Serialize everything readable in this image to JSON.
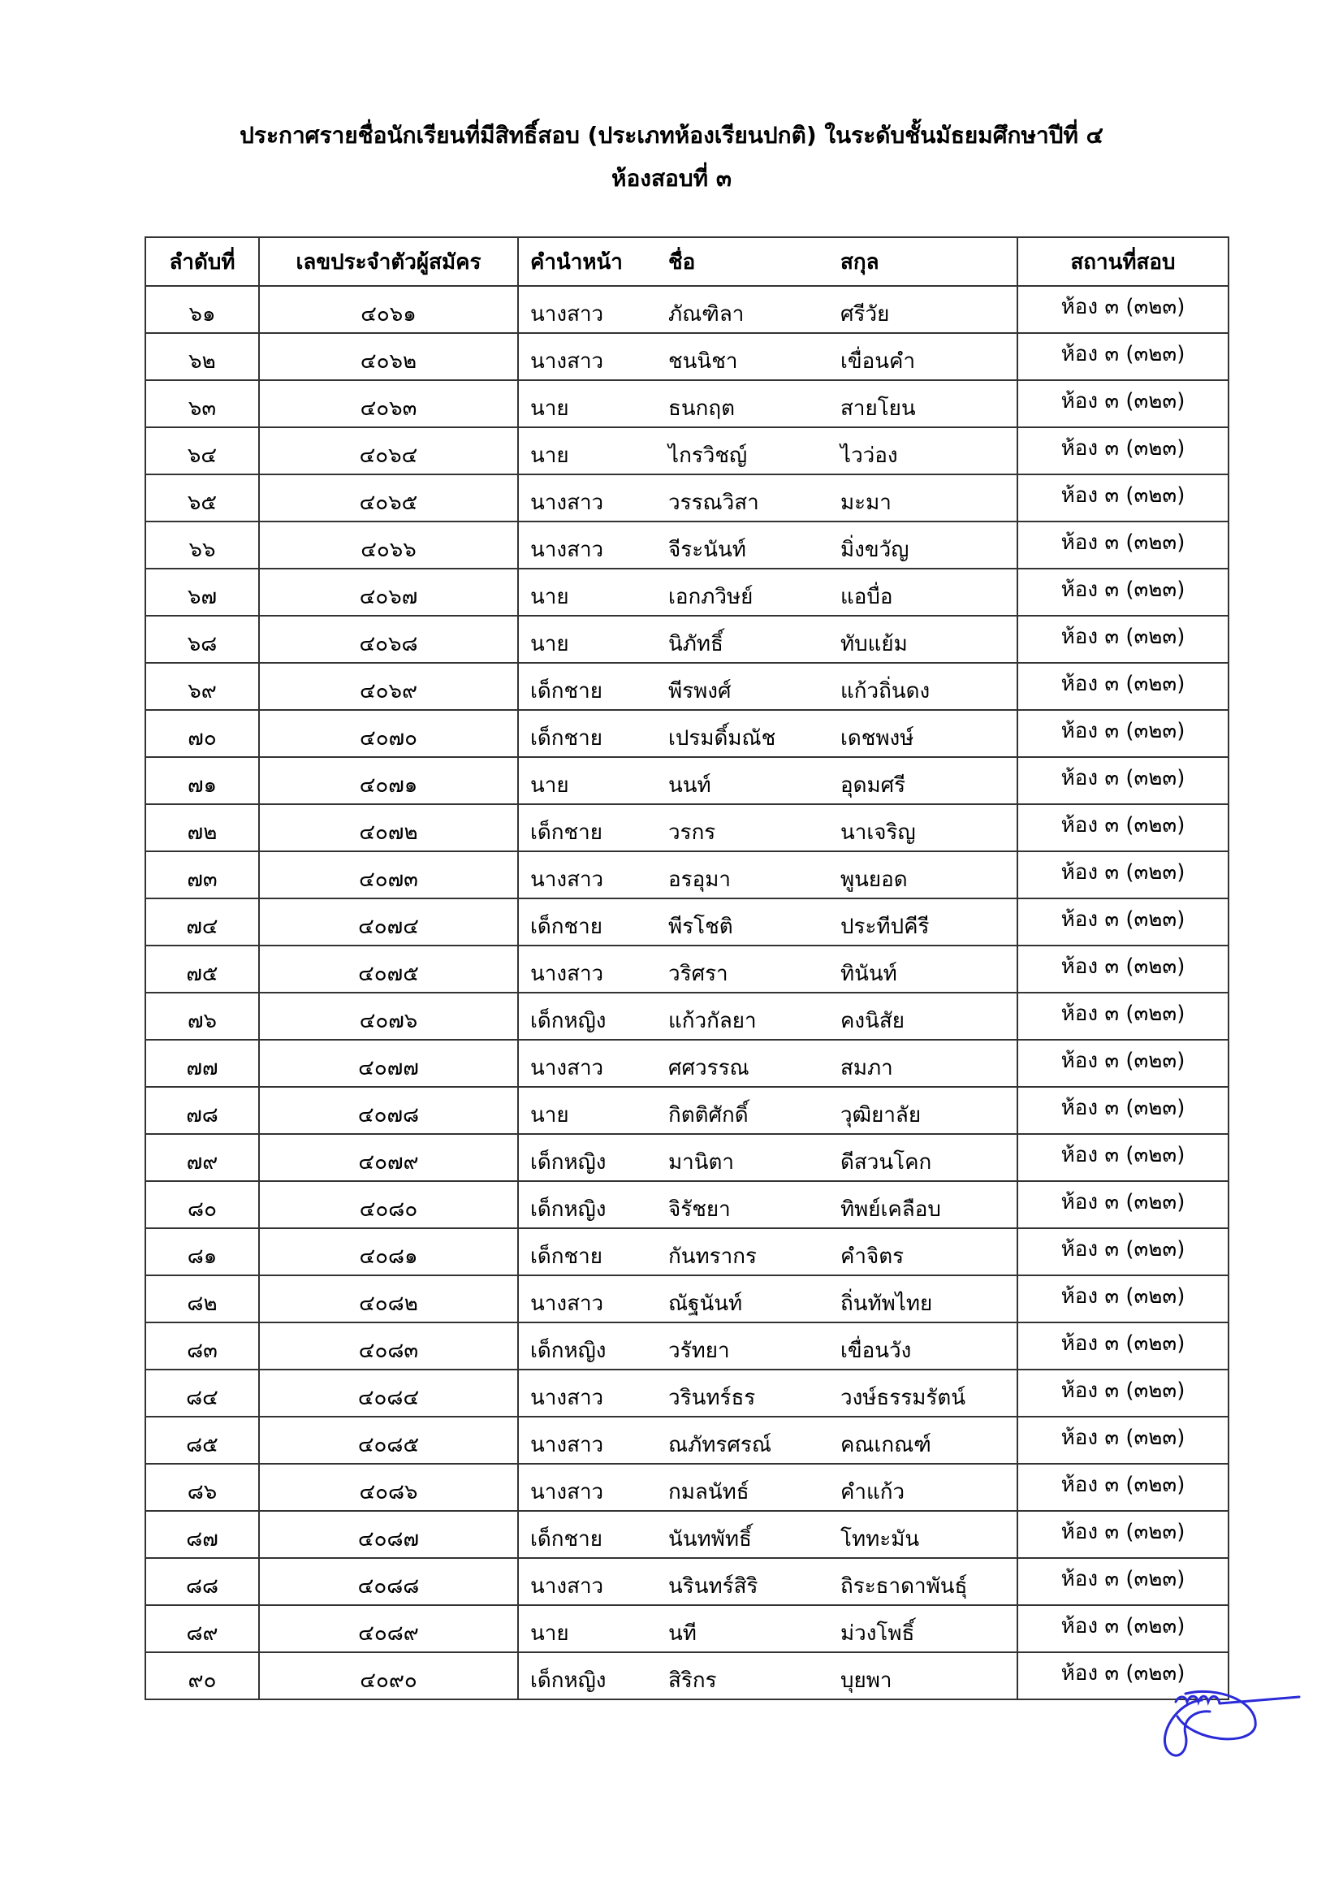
{
  "title": {
    "line1": "ประกาศรายชื่อนักเรียนที่มีสิทธิ์สอบ (ประเภทห้องเรียนปกติ) ในระดับชั้นมัธยมศึกษาปีที่ ๔",
    "line2": "ห้องสอบที่ ๓"
  },
  "table": {
    "headers": [
      "ลำดับที่",
      "เลขประจำตัวผู้สมัคร",
      "คำนำหน้า",
      "ชื่อ",
      "สกุล",
      "สถานที่สอบ"
    ],
    "rows": [
      [
        "๖๑",
        "๔๐๖๑",
        "นางสาว",
        "ภัณฑิลา",
        "ศรีวัย",
        "ห้อง ๓ (๓๒๓)"
      ],
      [
        "๖๒",
        "๔๐๖๒",
        "นางสาว",
        "ชนนิชา",
        "เขื่อนคำ",
        "ห้อง ๓ (๓๒๓)"
      ],
      [
        "๖๓",
        "๔๐๖๓",
        "นาย",
        "ธนกฤต",
        "สายโยน",
        "ห้อง ๓ (๓๒๓)"
      ],
      [
        "๖๔",
        "๔๐๖๔",
        "นาย",
        "ไกรวิชญ์",
        "ไวว่อง",
        "ห้อง ๓ (๓๒๓)"
      ],
      [
        "๖๕",
        "๔๐๖๕",
        "นางสาว",
        "วรรณวิสา",
        "มะมา",
        "ห้อง ๓ (๓๒๓)"
      ],
      [
        "๖๖",
        "๔๐๖๖",
        "นางสาว",
        "จีระนันท์",
        "มิ่งขวัญ",
        "ห้อง ๓ (๓๒๓)"
      ],
      [
        "๖๗",
        "๔๐๖๗",
        "นาย",
        "เอกภวิษย์",
        "แอบื่อ",
        "ห้อง ๓ (๓๒๓)"
      ],
      [
        "๖๘",
        "๔๐๖๘",
        "นาย",
        "นิภัทธิ์",
        "ทับแย้ม",
        "ห้อง ๓ (๓๒๓)"
      ],
      [
        "๖๙",
        "๔๐๖๙",
        "เด็กชาย",
        "พีรพงศ์",
        "แก้วถิ่นดง",
        "ห้อง ๓ (๓๒๓)"
      ],
      [
        "๗๐",
        "๔๐๗๐",
        "เด็กชาย",
        "เปรมดิ์มณัช",
        "เดชพงษ์",
        "ห้อง ๓ (๓๒๓)"
      ],
      [
        "๗๑",
        "๔๐๗๑",
        "นาย",
        "นนท์",
        "อุดมศรี",
        "ห้อง ๓ (๓๒๓)"
      ],
      [
        "๗๒",
        "๔๐๗๒",
        "เด็กชาย",
        "วรกร",
        "นาเจริญ",
        "ห้อง ๓ (๓๒๓)"
      ],
      [
        "๗๓",
        "๔๐๗๓",
        "นางสาว",
        "อรอุมา",
        "พูนยอด",
        "ห้อง ๓ (๓๒๓)"
      ],
      [
        "๗๔",
        "๔๐๗๔",
        "เด็กชาย",
        "พีรโชติ",
        "ประทีปคีรี",
        "ห้อง ๓ (๓๒๓)"
      ],
      [
        "๗๕",
        "๔๐๗๕",
        "นางสาว",
        "วริศรา",
        "ทินันท์",
        "ห้อง ๓ (๓๒๓)"
      ],
      [
        "๗๖",
        "๔๐๗๖",
        "เด็กหญิง",
        "แก้วกัลยา",
        "คงนิสัย",
        "ห้อง ๓ (๓๒๓)"
      ],
      [
        "๗๗",
        "๔๐๗๗",
        "นางสาว",
        "ศศวรรณ",
        "สมภา",
        "ห้อง ๓ (๓๒๓)"
      ],
      [
        "๗๘",
        "๔๐๗๘",
        "นาย",
        "กิตติศักดิ์",
        "วุฒิยาลัย",
        "ห้อง ๓ (๓๒๓)"
      ],
      [
        "๗๙",
        "๔๐๗๙",
        "เด็กหญิง",
        "มานิตา",
        "ดีสวนโคก",
        "ห้อง ๓ (๓๒๓)"
      ],
      [
        "๘๐",
        "๔๐๘๐",
        "เด็กหญิง",
        "จิรัชยา",
        "ทิพย์เคลือบ",
        "ห้อง ๓ (๓๒๓)"
      ],
      [
        "๘๑",
        "๔๐๘๑",
        "เด็กชาย",
        "กันทรากร",
        "คำจิตร",
        "ห้อง ๓ (๓๒๓)"
      ],
      [
        "๘๒",
        "๔๐๘๒",
        "นางสาว",
        "ณัฐนันท์",
        "ถิ่นทัพไทย",
        "ห้อง ๓ (๓๒๓)"
      ],
      [
        "๘๓",
        "๔๐๘๓",
        "เด็กหญิง",
        "วรัทยา",
        "เขื่อนวัง",
        "ห้อง ๓ (๓๒๓)"
      ],
      [
        "๘๔",
        "๔๐๘๔",
        "นางสาว",
        "วรินทร์ธร",
        "วงษ์ธรรมรัตน์",
        "ห้อง ๓ (๓๒๓)"
      ],
      [
        "๘๕",
        "๔๐๘๕",
        "นางสาว",
        "ณภัทรศรณ์",
        "คณเกณฑ์",
        "ห้อง ๓ (๓๒๓)"
      ],
      [
        "๘๖",
        "๔๐๘๖",
        "นางสาว",
        "กมลนัทธ์",
        "คำแก้ว",
        "ห้อง ๓ (๓๒๓)"
      ],
      [
        "๘๗",
        "๔๐๘๗",
        "เด็กชาย",
        "นันทพัทธิ์",
        "โททะมัน",
        "ห้อง ๓ (๓๒๓)"
      ],
      [
        "๘๘",
        "๔๐๘๘",
        "นางสาว",
        "นรินทร์สิริ",
        "ถิระธาดาพันธุ์",
        "ห้อง ๓ (๓๒๓)"
      ],
      [
        "๘๙",
        "๔๐๘๙",
        "นาย",
        "นที",
        "ม่วงโพธิ์",
        "ห้อง ๓ (๓๒๓)"
      ],
      [
        "๙๐",
        "๔๐๙๐",
        "เด็กหญิง",
        "สิริกร",
        "บุยพา",
        "ห้อง ๓ (๓๒๓)"
      ]
    ]
  },
  "signature": {
    "ink_color": "#2a2ad8"
  }
}
